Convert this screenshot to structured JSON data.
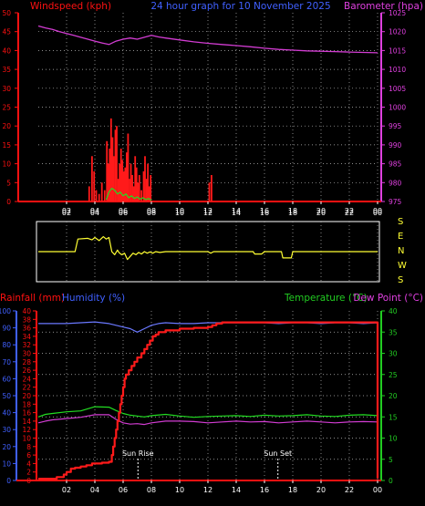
{
  "header": {
    "left": "Windspeed (kph)",
    "center": "24 hour graph for 10 November 2025",
    "right": "Barometer (hpa)"
  },
  "labels": {
    "rainfall": "Rainfall (mm)",
    "humidity": "Humidity (%)",
    "temperature": "Temperature (°C)",
    "dew_point": "Dew Point (°C)",
    "sun_rise": "Sun Rise",
    "sun_set": "Sun Set"
  },
  "colors": {
    "background": "#000000",
    "axis_red": "#ff1111",
    "axis_magenta": "#e040e0",
    "axis_blue": "#4060ff",
    "axis_green": "#22cc22",
    "wind_direction": "#ffff33",
    "wind_gust": "#ff1a1a",
    "wind_avg": "#22dd22",
    "pressure": "#d23cd2",
    "humidity": "#6a78ff",
    "temperature": "#22dd22",
    "dew_point": "#d23cd2",
    "rainfall": "#ff1a1a",
    "grid": "#bbbbbb"
  },
  "chart_data": [
    {
      "type": "line",
      "id": "wind_pressure",
      "title": "24 hour graph for 10 November 2025",
      "x_ticks": [
        "02",
        "04",
        "06",
        "08",
        "10",
        "12",
        "14",
        "16",
        "18",
        "20",
        "22",
        "00"
      ],
      "xlim": [
        0,
        24
      ],
      "left_axis": {
        "label": "Windspeed (kph)",
        "ticks": [
          0,
          5,
          10,
          15,
          20,
          25,
          30,
          35,
          40,
          45,
          50
        ],
        "ylim": [
          0,
          50
        ]
      },
      "right_axis": {
        "label": "Barometer (hpa)",
        "ticks": [
          975,
          980,
          985,
          990,
          995,
          1000,
          1005,
          1010,
          1015,
          1020,
          1025
        ],
        "ylim": [
          975,
          1025
        ]
      },
      "series": [
        {
          "name": "Barometer",
          "axis": "right",
          "style": "line",
          "x": [
            0,
            0.5,
            1,
            1.5,
            2,
            2.5,
            3,
            3.5,
            4,
            4.5,
            5,
            5.5,
            6,
            6.5,
            7,
            7.5,
            8,
            8.5,
            9,
            10,
            11,
            12,
            13,
            14,
            15,
            16,
            17,
            18,
            19,
            20,
            21,
            22,
            23,
            24
          ],
          "y": [
            1021.5,
            1021.0,
            1020.6,
            1020.0,
            1019.5,
            1019.0,
            1018.5,
            1018.0,
            1017.5,
            1017.0,
            1016.6,
            1017.5,
            1018.0,
            1018.3,
            1018.0,
            1018.5,
            1019.0,
            1018.6,
            1018.3,
            1017.8,
            1017.3,
            1016.9,
            1016.6,
            1016.3,
            1016.0,
            1015.6,
            1015.3,
            1015.1,
            1014.9,
            1014.8,
            1014.7,
            1014.6,
            1014.5,
            1014.4
          ]
        },
        {
          "name": "Gust",
          "axis": "left",
          "style": "bars",
          "x": [
            3.6,
            3.8,
            3.95,
            4.1,
            4.3,
            4.5,
            4.7,
            4.85,
            4.95,
            5.05,
            5.15,
            5.25,
            5.35,
            5.45,
            5.55,
            5.65,
            5.75,
            5.85,
            5.95,
            6.05,
            6.15,
            6.25,
            6.35,
            6.45,
            6.55,
            6.65,
            6.75,
            6.85,
            6.95,
            7.05,
            7.15,
            7.3,
            7.45,
            7.55,
            7.65,
            7.75,
            7.85,
            7.95,
            12.1,
            12.25
          ],
          "y": [
            4,
            12,
            8,
            3,
            2,
            5,
            3,
            16,
            10,
            14,
            22,
            17,
            12,
            19,
            20,
            6,
            10,
            14,
            11,
            8,
            9,
            13,
            18,
            6,
            10,
            7,
            4,
            12,
            9,
            5,
            7,
            3,
            8,
            12,
            6,
            10,
            4,
            7,
            5,
            7
          ]
        },
        {
          "name": "Average",
          "axis": "left",
          "style": "line",
          "x": [
            4.8,
            5.0,
            5.2,
            5.4,
            5.6,
            5.8,
            6.0,
            6.2,
            6.4,
            6.6,
            6.8,
            7.0,
            7.2,
            7.4,
            7.6,
            7.8,
            8.0
          ],
          "y": [
            0.5,
            2.5,
            3.5,
            3.0,
            2.0,
            2.5,
            1.5,
            2.0,
            1.0,
            1.5,
            0.8,
            1.2,
            0.6,
            1.0,
            0.5,
            0.8,
            0.3
          ]
        }
      ]
    },
    {
      "type": "line",
      "id": "wind_direction",
      "x_ticks": [
        "02",
        "04",
        "06",
        "08",
        "10",
        "12",
        "14",
        "16",
        "18",
        "20",
        "22",
        "00"
      ],
      "xlim": [
        0,
        24
      ],
      "y_ticks": [
        "S",
        "E",
        "N",
        "W",
        "S"
      ],
      "series": [
        {
          "name": "Wind Direction",
          "x": [
            0,
            2.6,
            2.8,
            3.5,
            3.8,
            4.0,
            4.3,
            4.6,
            4.8,
            5.0,
            5.2,
            5.4,
            5.6,
            5.7,
            5.9,
            6.1,
            6.3,
            6.5,
            6.7,
            6.9,
            7.1,
            7.3,
            7.5,
            7.7,
            7.9,
            8.1,
            8.3,
            8.6,
            9.0,
            10.0,
            11.5,
            12.0,
            12.2,
            12.4,
            15.2,
            15.3,
            15.8,
            16.0,
            16.1,
            17.2,
            17.3,
            17.9,
            18.0,
            24
          ],
          "y": [
            180,
            180,
            100,
            95,
            105,
            90,
            110,
            85,
            100,
            90,
            180,
            200,
            170,
            185,
            200,
            190,
            230,
            210,
            190,
            200,
            185,
            195,
            180,
            190,
            182,
            190,
            180,
            185,
            180,
            180,
            180,
            180,
            190,
            180,
            180,
            195,
            195,
            180,
            180,
            180,
            220,
            220,
            180,
            180
          ]
        }
      ]
    },
    {
      "type": "line",
      "id": "rain_humidity_temp",
      "x_ticks": [
        "02",
        "04",
        "06",
        "08",
        "10",
        "12",
        "14",
        "16",
        "18",
        "20",
        "22",
        "00"
      ],
      "xlim": [
        0,
        24
      ],
      "axes": {
        "humidity": {
          "label": "Humidity (%)",
          "ticks": [
            0,
            10,
            20,
            30,
            40,
            50,
            60,
            70,
            80,
            90,
            100
          ],
          "ylim": [
            0,
            100
          ]
        },
        "rainfall": {
          "label": "Rainfall (mm)",
          "ticks": [
            0,
            2,
            4,
            6,
            8,
            10,
            12,
            14,
            16,
            18,
            20,
            22,
            24,
            26,
            28,
            30,
            32,
            34,
            36,
            38,
            40
          ],
          "ylim": [
            0,
            40
          ]
        },
        "temperature": {
          "label": "Temperature (°C)",
          "ticks": [
            0,
            5,
            10,
            15,
            20,
            25,
            30,
            35,
            40
          ],
          "ylim": [
            0,
            40
          ]
        }
      },
      "annotations": [
        {
          "label": "Sun Rise",
          "x": 7.05
        },
        {
          "label": "Sun Set",
          "x": 16.95
        }
      ],
      "series": [
        {
          "name": "Rainfall",
          "axis": "rainfall",
          "style": "step",
          "x": [
            0,
            1.0,
            1.3,
            1.8,
            2.0,
            2.3,
            2.6,
            3.0,
            3.4,
            3.8,
            4.5,
            5.0,
            5.2,
            5.3,
            5.4,
            5.5,
            5.6,
            5.7,
            5.8,
            5.9,
            6.0,
            6.1,
            6.2,
            6.4,
            6.6,
            6.8,
            7.0,
            7.3,
            7.5,
            7.7,
            7.9,
            8.1,
            8.3,
            8.5,
            9.0,
            10.0,
            11.0,
            12.0,
            12.3,
            12.6,
            13.0,
            24,
            24
          ],
          "y": [
            0.4,
            0.4,
            0.8,
            1.4,
            2.0,
            2.8,
            3.0,
            3.3,
            3.6,
            4.0,
            4.2,
            4.4,
            6.0,
            8.0,
            10.0,
            12.0,
            14.0,
            16.0,
            18.0,
            20.0,
            22.0,
            24.0,
            25.0,
            26.0,
            27.0,
            28.0,
            29.0,
            30.0,
            31.0,
            32.0,
            33.0,
            34.0,
            34.4,
            35.0,
            35.4,
            35.8,
            36.0,
            36.2,
            36.6,
            37.0,
            37.3,
            37.3,
            0.5
          ]
        },
        {
          "name": "Humidity",
          "axis": "humidity",
          "style": "line",
          "x": [
            0,
            1,
            2,
            3,
            4,
            5,
            5.5,
            6,
            6.5,
            7,
            7.5,
            8,
            8.5,
            9,
            10,
            11,
            12,
            13,
            14,
            15,
            16,
            17,
            18,
            19,
            20,
            21,
            22,
            23,
            24
          ],
          "y": [
            92.5,
            92.5,
            92.5,
            93.0,
            93.5,
            92.5,
            91.5,
            90.5,
            89.5,
            87.5,
            89.5,
            91.5,
            92.5,
            93.0,
            92.5,
            92.5,
            93.0,
            93.0,
            93.0,
            93.0,
            93.0,
            92.5,
            93.0,
            93.0,
            92.5,
            93.0,
            93.0,
            92.5,
            93.0
          ]
        },
        {
          "name": "Temperature",
          "axis": "temperature",
          "style": "line",
          "x": [
            0,
            0.5,
            1,
            2,
            3,
            4,
            5,
            5.5,
            6,
            6.5,
            7,
            7.5,
            8,
            9,
            10,
            11,
            12,
            13,
            14,
            15,
            16,
            17,
            18,
            19,
            20,
            21,
            22,
            23,
            24
          ],
          "y": [
            15.0,
            15.6,
            15.8,
            16.2,
            16.4,
            17.4,
            17.3,
            16.5,
            15.8,
            15.4,
            15.2,
            15.0,
            15.3,
            15.6,
            15.2,
            14.9,
            15.1,
            15.2,
            15.3,
            15.1,
            15.4,
            15.2,
            15.3,
            15.5,
            15.2,
            15.1,
            15.4,
            15.5,
            15.3
          ]
        },
        {
          "name": "Dew Point",
          "axis": "temperature",
          "style": "line",
          "x": [
            0,
            0.5,
            1,
            2,
            3,
            4,
            5,
            5.5,
            6,
            6.5,
            7,
            7.5,
            8,
            9,
            10,
            11,
            12,
            13,
            14,
            15,
            16,
            17,
            18,
            19,
            20,
            21,
            22,
            23,
            24
          ],
          "y": [
            13.6,
            14.0,
            14.3,
            14.6,
            14.9,
            15.5,
            15.5,
            14.4,
            13.6,
            13.3,
            13.4,
            13.2,
            13.6,
            14.0,
            14.0,
            13.9,
            13.6,
            13.8,
            14.0,
            13.8,
            13.9,
            13.6,
            13.8,
            14.0,
            13.8,
            13.6,
            13.8,
            13.9,
            13.8
          ]
        }
      ]
    }
  ]
}
